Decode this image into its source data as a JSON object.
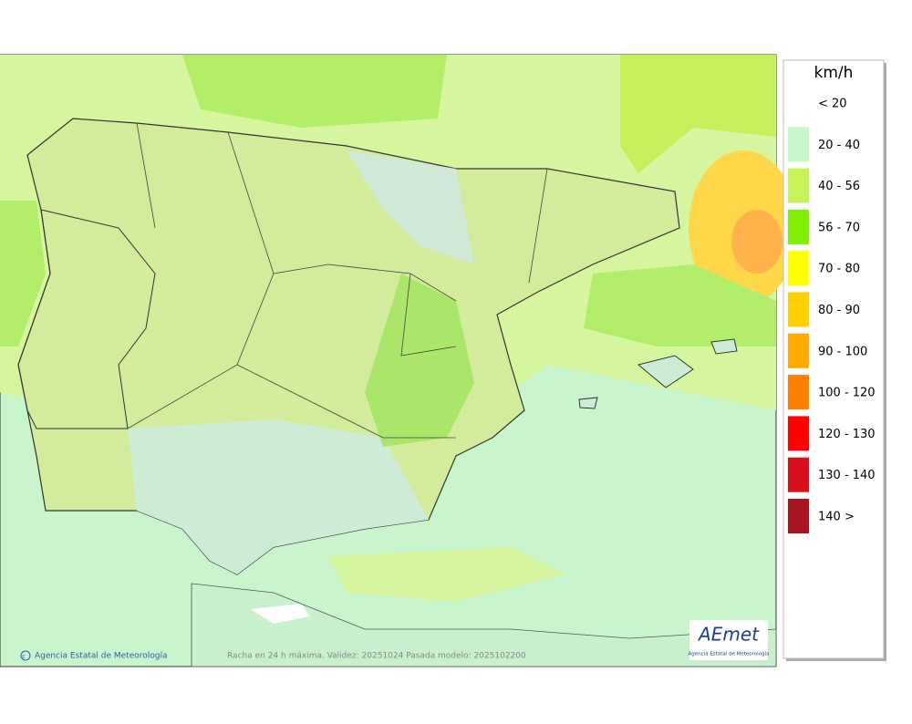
{
  "legend": {
    "title": "km/h",
    "items": [
      {
        "label": "< 20"
      },
      {
        "label": "20 - 40",
        "color": "#c8f7cc"
      },
      {
        "label": "40 - 56",
        "color": "#c6f25a"
      },
      {
        "label": "56 - 70",
        "color": "#80f000"
      },
      {
        "label": "70 - 80",
        "color": "#ffff00"
      },
      {
        "label": "80 - 90",
        "color": "#ffd000"
      },
      {
        "label": "90 - 100",
        "color": "#ffaa00"
      },
      {
        "label": "100 - 120",
        "color": "#ff8000"
      },
      {
        "label": "120 - 130",
        "color": "#ff0000"
      },
      {
        "label": "130 - 140",
        "color": "#d7101e"
      },
      {
        "label": "140 >",
        "color": "#aa1522"
      }
    ]
  },
  "footer": {
    "credit": "Agencia Estatal de Meteorología",
    "caption": "Racha en 24 h máxima. Validez: 20251024 Pasada modelo: 2025102200"
  },
  "logo": {
    "name": "AEmet",
    "subtitle": "Agencia Estatal de Meteorología"
  }
}
